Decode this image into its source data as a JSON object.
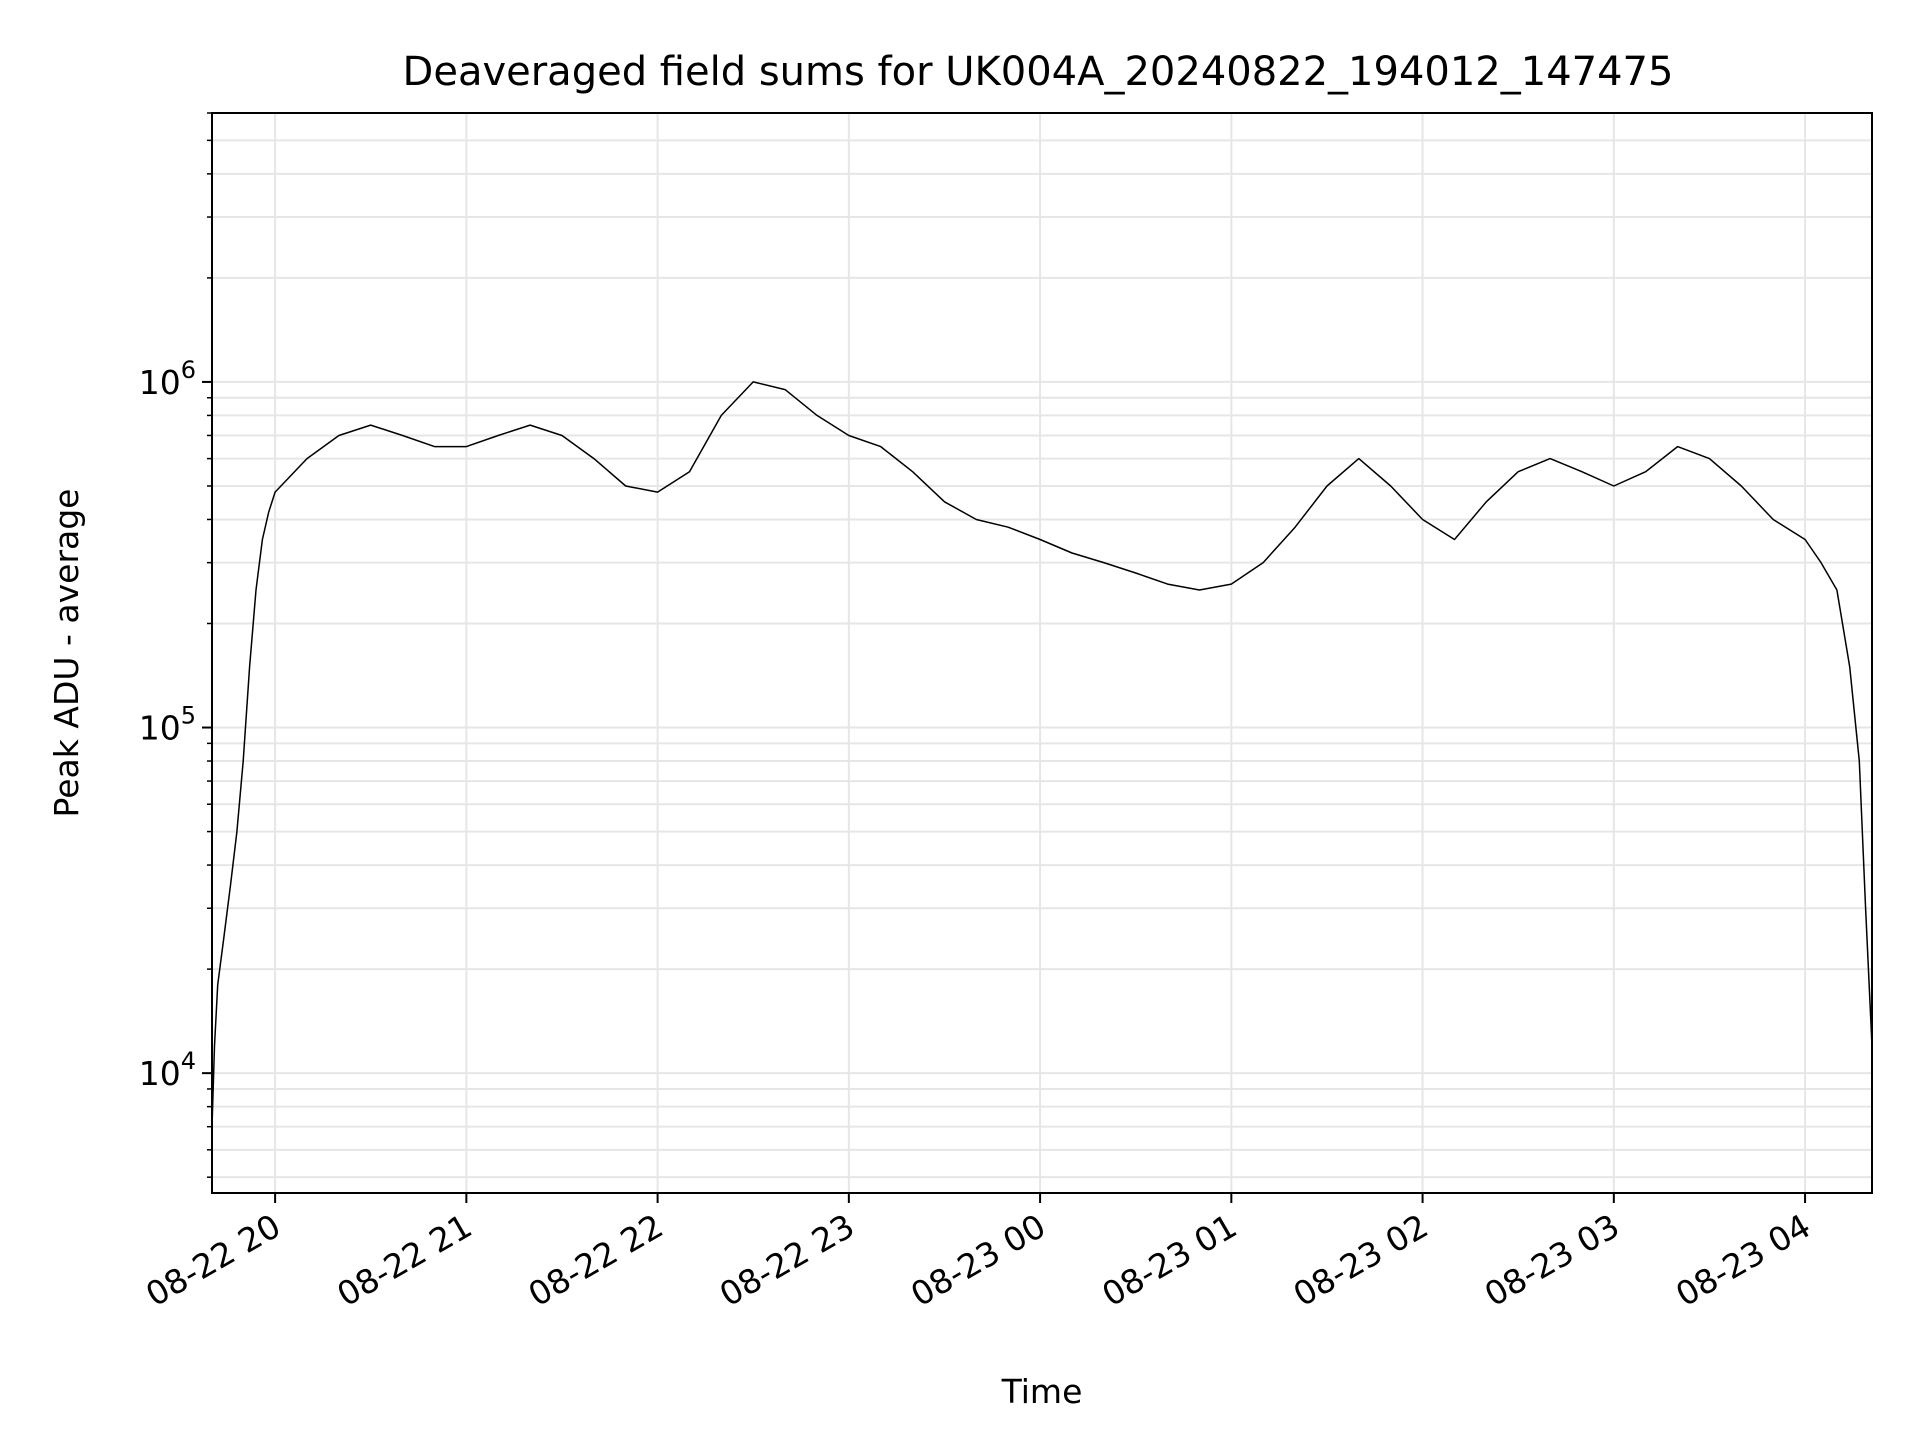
{
  "chart_data": {
    "type": "line",
    "title": "Deaveraged field sums for UK004A_20240822_194012_147475",
    "xlabel": "Time",
    "ylabel": "Peak ADU - average",
    "y_scale": "log",
    "ylim": [
      4500,
      6000000
    ],
    "xlim": [
      "2024-08-22 19:40:12",
      "2024-08-23 04:21:00"
    ],
    "grid": true,
    "line_color": "#000000",
    "grid_color": "#e6e6e6",
    "x_ticks": [
      {
        "t": "2024-08-22 20:00",
        "label": "08-22 20"
      },
      {
        "t": "2024-08-22 21:00",
        "label": "08-22 21"
      },
      {
        "t": "2024-08-22 22:00",
        "label": "08-22 22"
      },
      {
        "t": "2024-08-22 23:00",
        "label": "08-22 23"
      },
      {
        "t": "2024-08-23 00:00",
        "label": "08-23 00"
      },
      {
        "t": "2024-08-23 01:00",
        "label": "08-23 01"
      },
      {
        "t": "2024-08-23 02:00",
        "label": "08-23 02"
      },
      {
        "t": "2024-08-23 03:00",
        "label": "08-23 03"
      },
      {
        "t": "2024-08-23 04:00",
        "label": "08-23 04"
      }
    ],
    "y_ticks": [
      {
        "value": 10000,
        "base": "10",
        "exp": "4"
      },
      {
        "value": 100000,
        "base": "10",
        "exp": "5"
      },
      {
        "value": 1000000,
        "base": "10",
        "exp": "6"
      }
    ],
    "series": [
      {
        "x": [
          "2024-08-22 19:40:12",
          "2024-08-22 19:41",
          "2024-08-22 19:42",
          "2024-08-22 19:44",
          "2024-08-22 19:46",
          "2024-08-22 19:48",
          "2024-08-22 19:50",
          "2024-08-22 19:52",
          "2024-08-22 19:54",
          "2024-08-22 19:56",
          "2024-08-22 19:58",
          "2024-08-22 20:00",
          "2024-08-22 20:10",
          "2024-08-22 20:20",
          "2024-08-22 20:30",
          "2024-08-22 20:40",
          "2024-08-22 20:50",
          "2024-08-22 21:00",
          "2024-08-22 21:10",
          "2024-08-22 21:20",
          "2024-08-22 21:30",
          "2024-08-22 21:40",
          "2024-08-22 21:50",
          "2024-08-22 22:00",
          "2024-08-22 22:10",
          "2024-08-22 22:20",
          "2024-08-22 22:30",
          "2024-08-22 22:40",
          "2024-08-22 22:50",
          "2024-08-22 23:00",
          "2024-08-22 23:10",
          "2024-08-22 23:20",
          "2024-08-22 23:30",
          "2024-08-22 23:40",
          "2024-08-22 23:50",
          "2024-08-23 00:00",
          "2024-08-23 00:10",
          "2024-08-23 00:20",
          "2024-08-23 00:30",
          "2024-08-23 00:40",
          "2024-08-23 00:50",
          "2024-08-23 01:00",
          "2024-08-23 01:10",
          "2024-08-23 01:20",
          "2024-08-23 01:30",
          "2024-08-23 01:40",
          "2024-08-23 01:50",
          "2024-08-23 02:00",
          "2024-08-23 02:10",
          "2024-08-23 02:20",
          "2024-08-23 02:30",
          "2024-08-23 02:40",
          "2024-08-23 02:50",
          "2024-08-23 03:00",
          "2024-08-23 03:10",
          "2024-08-23 03:20",
          "2024-08-23 03:30",
          "2024-08-23 03:40",
          "2024-08-23 03:50",
          "2024-08-23 04:00",
          "2024-08-23 04:05",
          "2024-08-23 04:10",
          "2024-08-23 04:14",
          "2024-08-23 04:17",
          "2024-08-23 04:19",
          "2024-08-23 04:21"
        ],
        "y": [
          7000,
          12000,
          18000,
          25000,
          35000,
          50000,
          80000,
          150000,
          250000,
          350000,
          420000,
          480000,
          600000,
          700000,
          750000,
          700000,
          650000,
          650000,
          700000,
          750000,
          700000,
          600000,
          500000,
          480000,
          550000,
          800000,
          1000000,
          950000,
          800000,
          700000,
          650000,
          550000,
          450000,
          400000,
          380000,
          350000,
          320000,
          300000,
          280000,
          260000,
          250000,
          260000,
          300000,
          380000,
          500000,
          600000,
          500000,
          400000,
          350000,
          450000,
          550000,
          600000,
          550000,
          500000,
          550000,
          650000,
          600000,
          500000,
          400000,
          350000,
          300000,
          250000,
          150000,
          80000,
          30000,
          12000
        ]
      }
    ]
  }
}
